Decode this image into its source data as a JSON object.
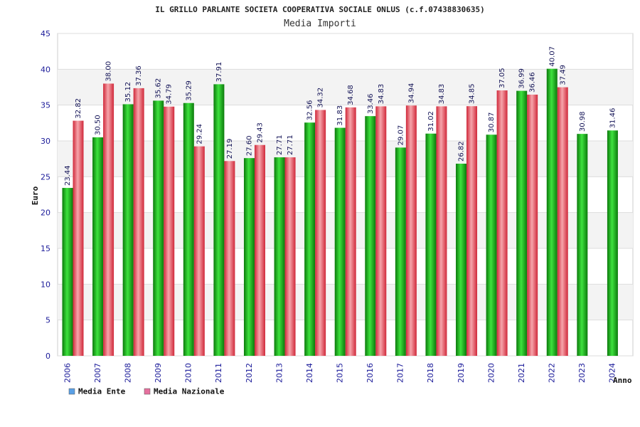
{
  "chart_data": {
    "type": "bar",
    "title": "IL GRILLO PARLANTE SOCIETA COOPERATIVA SOCIALE ONLUS (c.f.07438830635)",
    "subtitle": "Media Importi",
    "xlabel": "Anno",
    "ylabel": "Euro",
    "ylim": [
      0,
      45
    ],
    "yticks": [
      0,
      5,
      10,
      15,
      20,
      25,
      30,
      35,
      40,
      45
    ],
    "grid": true,
    "legend_position": "bottom-left",
    "categories": [
      "2006",
      "2007",
      "2008",
      "2009",
      "2010",
      "2011",
      "2012",
      "2013",
      "2014",
      "2015",
      "2016",
      "2017",
      "2018",
      "2019",
      "2020",
      "2021",
      "2022",
      "2023",
      "2024"
    ],
    "series": [
      {
        "name": "Media Ente",
        "color": "#1faa1f",
        "legend_color": "#5aa0e6",
        "values": [
          23.44,
          30.5,
          35.12,
          35.62,
          35.29,
          37.91,
          27.6,
          27.71,
          32.56,
          31.83,
          33.46,
          29.07,
          31.02,
          26.82,
          30.87,
          36.99,
          40.07,
          30.98,
          31.46
        ],
        "labels": [
          "23.44",
          "30.50",
          "35.12",
          "35.62",
          "35.29",
          "37.91",
          "27.60",
          "27.71",
          "32.56",
          "31.83",
          "33.46",
          "29.07",
          "31.02",
          "26.82",
          "30.87",
          "36.99",
          "40.07",
          "30.98",
          "31.46"
        ]
      },
      {
        "name": "Media Nazionale",
        "color": "#e8454f",
        "legend_color": "#e6709e",
        "values": [
          32.82,
          38.0,
          37.36,
          34.79,
          29.24,
          27.19,
          29.43,
          27.71,
          34.32,
          34.68,
          34.83,
          34.94,
          34.83,
          34.85,
          37.05,
          36.46,
          37.49,
          null,
          null
        ],
        "labels": [
          "32.82",
          "38.00",
          "37.36",
          "34.79",
          "29.24",
          "27.19",
          "29.43",
          "27.71",
          "34.32",
          "34.68",
          "34.83",
          "34.94",
          "34.83",
          "34.85",
          "37.05",
          "36.46",
          "37.49",
          "",
          ""
        ]
      }
    ]
  }
}
